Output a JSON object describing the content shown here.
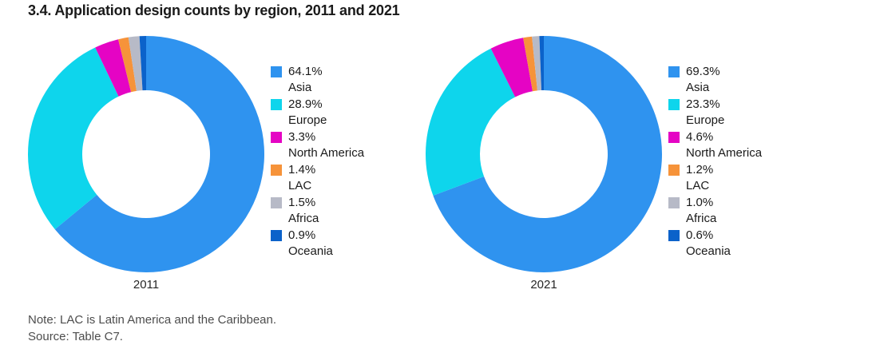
{
  "title": "3.4. Application design counts by region, 2011 and 2021",
  "note": "Note: LAC is Latin America and the Caribbean.",
  "source": "Source: Table C7.",
  "region_colors": {
    "Asia": "#2f93ef",
    "Europe": "#0ed5ec",
    "North America": "#e504c4",
    "LAC": "#f6933a",
    "Africa": "#b7bac7",
    "Oceania": "#0b62ca"
  },
  "chart_data": [
    {
      "type": "pie",
      "subtype": "donut",
      "title": "2011",
      "categories": [
        "Asia",
        "Europe",
        "North America",
        "LAC",
        "Africa",
        "Oceania"
      ],
      "values": [
        64.1,
        28.9,
        3.3,
        1.4,
        1.5,
        0.9
      ],
      "labels": [
        "64.1%",
        "28.9%",
        "3.3%",
        "1.4%",
        "1.5%",
        "0.9%"
      ],
      "colors": [
        "#2f93ef",
        "#0ed5ec",
        "#e504c4",
        "#f6933a",
        "#b7bac7",
        "#0b62ca"
      ],
      "legend_position": "right",
      "start_angle_deg": 0,
      "direction": "clockwise",
      "inner_radius_ratio": 0.54
    },
    {
      "type": "pie",
      "subtype": "donut",
      "title": "2021",
      "categories": [
        "Asia",
        "Europe",
        "North America",
        "LAC",
        "Africa",
        "Oceania"
      ],
      "values": [
        69.3,
        23.3,
        4.6,
        1.2,
        1.0,
        0.6
      ],
      "labels": [
        "69.3%",
        "23.3%",
        "4.6%",
        "1.2%",
        "1.0%",
        "0.6%"
      ],
      "colors": [
        "#2f93ef",
        "#0ed5ec",
        "#e504c4",
        "#f6933a",
        "#b7bac7",
        "#0b62ca"
      ],
      "legend_position": "right",
      "start_angle_deg": 0,
      "direction": "clockwise",
      "inner_radius_ratio": 0.54
    }
  ]
}
